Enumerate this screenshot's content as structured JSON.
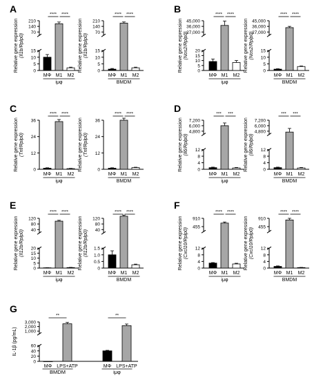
{
  "chart_data": [
    {
      "type": "bar",
      "panel": "A",
      "categories": [
        "MΦ",
        "M1",
        "M2"
      ],
      "values": [
        10,
        172,
        2
      ],
      "errors": [
        2,
        22,
        0.5
      ],
      "colors": [
        "#000000",
        "#a6a6a6",
        "#ffffff"
      ],
      "xlabel": "iμφ",
      "ylabel": "Relative gene expression",
      "ylabel_gene": "(Il1b/Rplp0)",
      "yticks": [
        "0",
        "5",
        "10",
        "15",
        "70",
        "140",
        "210"
      ],
      "sig": [
        {
          "from": 0,
          "to": 1,
          "text": "****"
        },
        {
          "from": 1,
          "to": 2,
          "text": "****"
        }
      ]
    },
    {
      "type": "bar",
      "categories": [
        "MΦ",
        "M1",
        "M2"
      ],
      "values": [
        1,
        180,
        2
      ],
      "errors": [
        0.5,
        15,
        0.5
      ],
      "colors": [
        "#000000",
        "#a6a6a6",
        "#ffffff"
      ],
      "xlabel": "BMDM",
      "ylabel": "Relative gene expression",
      "ylabel_gene": "(Il1b/Rplp0)",
      "yticks": [
        "0",
        "5",
        "10",
        "15",
        "70",
        "140",
        "210"
      ],
      "sig": [
        {
          "from": 0,
          "to": 1,
          "text": "****"
        },
        {
          "from": 1,
          "to": 2,
          "text": "****"
        }
      ]
    },
    {
      "type": "bar",
      "panel": "B",
      "categories": [
        "MΦ",
        "M1",
        "M2"
      ],
      "values": [
        9,
        37500,
        8
      ],
      "errors": [
        2.5,
        7000,
        2
      ],
      "colors": [
        "#000000",
        "#a6a6a6",
        "#ffffff"
      ],
      "xlabel": "iμφ",
      "ylabel": "Relative gene expression",
      "ylabel_gene": "(Nos2/Rplp0)",
      "yticks": [
        "0",
        "5",
        "10",
        "15",
        "20",
        "27,000",
        "36,000",
        "45,000"
      ],
      "sig": [
        {
          "from": 0,
          "to": 1,
          "text": "****"
        },
        {
          "from": 1,
          "to": 2,
          "text": "****"
        }
      ]
    },
    {
      "type": "bar",
      "categories": [
        "MΦ",
        "M1",
        "M2"
      ],
      "values": [
        1,
        34000,
        3
      ],
      "errors": [
        0.3,
        2000,
        0.4
      ],
      "colors": [
        "#000000",
        "#a6a6a6",
        "#ffffff"
      ],
      "xlabel": "BMDM",
      "ylabel": "Relative gene expression",
      "ylabel_gene": "(Nos2/Rplp0)",
      "yticks": [
        "0",
        "5",
        "10",
        "15",
        "27,000",
        "36,000",
        "45,000"
      ],
      "sig": [
        {
          "from": 0,
          "to": 1,
          "text": "****"
        },
        {
          "from": 1,
          "to": 2,
          "text": "****"
        }
      ]
    },
    {
      "type": "bar",
      "panel": "C",
      "categories": [
        "MΦ",
        "M1",
        "M2"
      ],
      "values": [
        0.8,
        35,
        0.5
      ],
      "errors": [
        0.3,
        1.5,
        0.2
      ],
      "colors": [
        "#000000",
        "#a6a6a6",
        "#ffffff"
      ],
      "xlabel": "iμφ",
      "ylabel": "Relative gene expression",
      "ylabel_gene": "(Tnf/Rplp0)",
      "yticks": [
        "0",
        "12",
        "24",
        "36"
      ],
      "sig": [
        {
          "from": 0,
          "to": 1,
          "text": "****"
        },
        {
          "from": 1,
          "to": 2,
          "text": "****"
        }
      ]
    },
    {
      "type": "bar",
      "categories": [
        "MΦ",
        "M1",
        "M2"
      ],
      "values": [
        0.8,
        36,
        1.2
      ],
      "errors": [
        0.3,
        1.5,
        0.3
      ],
      "colors": [
        "#000000",
        "#a6a6a6",
        "#ffffff"
      ],
      "xlabel": "BMDM",
      "ylabel": "Relative gene expression",
      "ylabel_gene": "(Tnf/Rplp0)",
      "yticks": [
        "0",
        "12",
        "24",
        "36"
      ],
      "sig": [
        {
          "from": 0,
          "to": 1,
          "text": "****"
        },
        {
          "from": 1,
          "to": 2,
          "text": "****"
        }
      ]
    },
    {
      "type": "bar",
      "panel": "D",
      "categories": [
        "MΦ",
        "M1",
        "M2"
      ],
      "values": [
        1,
        6000,
        0.8
      ],
      "errors": [
        0.3,
        600,
        0.3
      ],
      "colors": [
        "#000000",
        "#a6a6a6",
        "#ffffff"
      ],
      "xlabel": "iμφ",
      "ylabel": "Relative gene expression",
      "ylabel_gene": "(Il6/Rplp0)",
      "yticks": [
        "0",
        "4",
        "8",
        "12",
        "4,800",
        "6,000",
        "7,200"
      ],
      "sig": [
        {
          "from": 0,
          "to": 1,
          "text": "***"
        },
        {
          "from": 1,
          "to": 2,
          "text": "***"
        }
      ]
    },
    {
      "type": "bar",
      "categories": [
        "MΦ",
        "M1",
        "M2"
      ],
      "values": [
        1,
        4600,
        0.8
      ],
      "errors": [
        0.3,
        800,
        0.3
      ],
      "colors": [
        "#000000",
        "#a6a6a6",
        "#ffffff"
      ],
      "xlabel": "BMDM",
      "ylabel": "Relative gene expression",
      "ylabel_gene": "(Il6/Rplp0)",
      "yticks": [
        "0",
        "4",
        "8",
        "12",
        "4,800",
        "6,000",
        "7,200"
      ],
      "sig": [
        {
          "from": 0,
          "to": 1,
          "text": "***"
        },
        {
          "from": 1,
          "to": 2,
          "text": "***"
        }
      ]
    },
    {
      "type": "bar",
      "panel": "E",
      "categories": [
        "MΦ",
        "M1",
        "M2"
      ],
      "values": [
        0.3,
        100,
        0.5
      ],
      "errors": [
        0.1,
        6,
        0.2
      ],
      "colors": [
        "#000000",
        "#a6a6a6",
        "#ffffff"
      ],
      "xlabel": "iμφ",
      "ylabel": "Relative gene expression",
      "ylabel_gene": "(Il12b/Rplp0)",
      "yticks": [
        "0",
        "5",
        "10",
        "15",
        "20",
        "40",
        "80",
        "120"
      ],
      "sig": [
        {
          "from": 0,
          "to": 1,
          "text": "****"
        },
        {
          "from": 1,
          "to": 2,
          "text": "****"
        }
      ]
    },
    {
      "type": "bar",
      "categories": [
        "MΦ",
        "M1",
        "M2"
      ],
      "values": [
        1.0,
        135,
        0.25
      ],
      "errors": [
        0.3,
        8,
        0.05
      ],
      "colors": [
        "#000000",
        "#a6a6a6",
        "#ffffff"
      ],
      "xlabel": "BMDM",
      "ylabel": "Relative gene expression",
      "ylabel_gene": "(Il12b/Rplp0)",
      "yticks": [
        "0",
        "0.5",
        "1.0",
        "1.5",
        "40",
        "80",
        "120"
      ],
      "sig": [
        {
          "from": 0,
          "to": 1,
          "text": "****"
        },
        {
          "from": 1,
          "to": 2,
          "text": "****"
        }
      ]
    },
    {
      "type": "bar",
      "panel": "F",
      "categories": [
        "MΦ",
        "M1",
        "M2"
      ],
      "values": [
        3,
        650,
        2.5
      ],
      "errors": [
        0.3,
        60,
        0.4
      ],
      "colors": [
        "#000000",
        "#a6a6a6",
        "#ffffff"
      ],
      "xlabel": "iμφ",
      "ylabel": "Relative gene expression",
      "ylabel_gene": "(Cxcl10/Rplp0)",
      "yticks": [
        "0",
        "4",
        "8",
        "12",
        "455",
        "910"
      ],
      "sig": [
        {
          "from": 0,
          "to": 1,
          "text": "****"
        },
        {
          "from": 1,
          "to": 2,
          "text": "****"
        }
      ]
    },
    {
      "type": "bar",
      "categories": [
        "MΦ",
        "M1",
        "M2"
      ],
      "values": [
        1,
        820,
        0.3
      ],
      "errors": [
        0.3,
        90,
        0.1
      ],
      "colors": [
        "#000000",
        "#a6a6a6",
        "#ffffff"
      ],
      "xlabel": "BMDM",
      "ylabel": "Relative gene expression",
      "ylabel_gene": "(Cxcl10/Rplp0)",
      "yticks": [
        "0",
        "4",
        "8",
        "12",
        "455",
        "910"
      ],
      "sig": [
        {
          "from": 0,
          "to": 1,
          "text": "****"
        },
        {
          "from": 1,
          "to": 2,
          "text": "****"
        }
      ]
    },
    {
      "type": "bar",
      "panel": "G",
      "categories": [
        "MΦ",
        "LPS+ATP",
        "MΦ",
        "LPS+ATP"
      ],
      "groups": [
        "BMDM",
        "iμφ"
      ],
      "values": [
        0,
        2600,
        40,
        2200
      ],
      "errors": [
        0,
        300,
        2,
        350
      ],
      "colors": [
        "#000000",
        "#a6a6a6",
        "#000000",
        "#a6a6a6"
      ],
      "ylabel": "IL-1β (pg/mL)",
      "yticks": [
        "0",
        "20",
        "40",
        "60",
        "1,000",
        "2,000",
        "3,000"
      ],
      "sig": [
        {
          "from": 0,
          "to": 1,
          "text": "**"
        },
        {
          "from": 2,
          "to": 3,
          "text": "**"
        }
      ]
    }
  ]
}
